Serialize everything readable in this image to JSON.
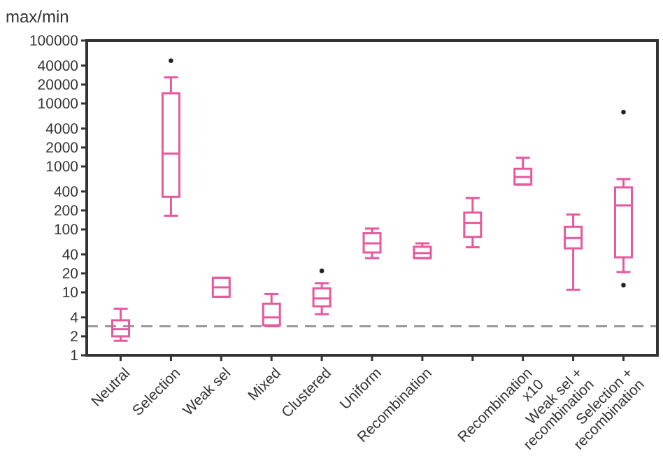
{
  "chart_data": {
    "type": "box",
    "ylabel": "max/min",
    "log": true,
    "categories": [
      "Neutral",
      "Selection",
      "Weak sel",
      "Mixed",
      "Clustered",
      "Uniform",
      "Recombination",
      null,
      "Recombination x10",
      "Weak sel + recombination",
      "Selection + recombination"
    ],
    "colors": [
      "#e8589c",
      "#e8589c",
      "#e8589c",
      "#e8589c",
      "#e8589c",
      "#e8589c",
      "#e8589c",
      "#e8589c",
      "#e8589c",
      "#e8589c",
      "#e8589c"
    ],
    "boxes": [
      {
        "low": 1.7,
        "q1": 2,
        "median": 2.6,
        "q3": 3.6,
        "high": 5.5
      },
      {
        "low": 165,
        "q1": 330,
        "median": 1600,
        "q3": 14500,
        "high": 26000,
        "outliers": [
          48000
        ]
      },
      {
        "low": 8.5,
        "q1": 8.5,
        "median": 12,
        "q3": 17,
        "high": 17
      },
      {
        "low": 2.9,
        "q1": 3,
        "median": 4,
        "q3": 6.6,
        "high": 9.4
      },
      {
        "low": 4.5,
        "q1": 6,
        "median": 8,
        "q3": 11.6,
        "high": 14,
        "outliers": [
          22
        ]
      },
      {
        "low": 35,
        "q1": 43,
        "median": 60,
        "q3": 87,
        "high": 103
      },
      {
        "low": 35,
        "q1": 35,
        "median": 42,
        "q3": 53,
        "high": 60
      },
      {
        "low": 52,
        "q1": 76,
        "median": 127,
        "q3": 185,
        "high": 315
      },
      {
        "low": 515,
        "q1": 515,
        "median": 680,
        "q3": 920,
        "high": 1380
      },
      {
        "low": 11,
        "q1": 50,
        "median": 73,
        "q3": 110,
        "high": 172
      },
      {
        "low": 21,
        "q1": 36,
        "median": 240,
        "q3": 465,
        "high": 630,
        "outliers": [
          7300,
          13
        ]
      }
    ],
    "ylim": [
      1,
      100000
    ],
    "yticks": [
      1,
      2,
      4,
      10,
      20,
      40,
      100,
      200,
      400,
      1000,
      2000,
      4000,
      10000,
      20000,
      40000,
      100000
    ],
    "ref_lines": [
      {
        "axis": "y",
        "value": 2.9,
        "color": "#999999",
        "line_style": "dashed"
      }
    ]
  }
}
